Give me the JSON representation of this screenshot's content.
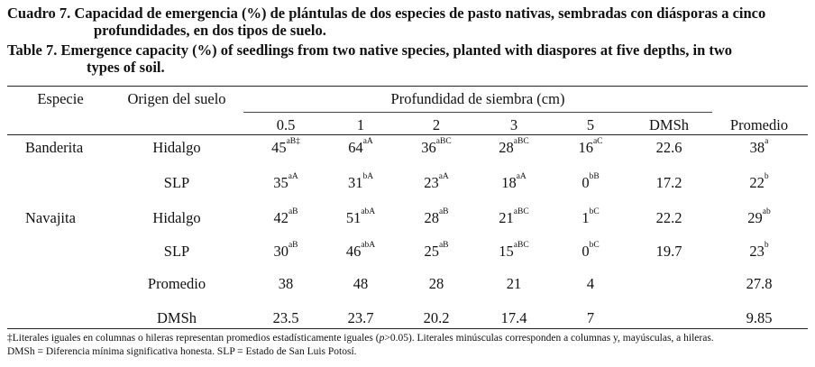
{
  "caption": {
    "es_line1": "Cuadro 7. Capacidad de emergencia (%) de plántulas de dos especies de pasto nativas, sembradas con diásporas a cinco",
    "es_line2": "profundidades, en dos tipos de suelo.",
    "en_line1": "Table 7. Emergence capacity (%) of seedlings from two native species, planted with diaspores at five depths, in two",
    "en_line2": "types of soil."
  },
  "header": {
    "especie": "Especie",
    "origen": "Origen del suelo",
    "profundidad": "Profundidad de siembra (cm)",
    "depths": [
      "0.5",
      "1",
      "2",
      "3",
      "5"
    ],
    "dmsh": "DMSh",
    "promedio": "Promedio"
  },
  "rows": [
    {
      "species": "Banderita",
      "soil": "Hidalgo",
      "cells": [
        [
          "45",
          "aB‡"
        ],
        [
          "64",
          "aA"
        ],
        [
          "36",
          "aBC"
        ],
        [
          "28",
          "aBC"
        ],
        [
          "16",
          "aC"
        ]
      ],
      "dmsh": "22.6",
      "prom": [
        "38",
        "a"
      ]
    },
    {
      "species": "",
      "soil": "SLP",
      "cells": [
        [
          "35",
          "aA"
        ],
        [
          "31",
          "bA"
        ],
        [
          "23",
          "aA"
        ],
        [
          "18",
          "aA"
        ],
        [
          "0",
          "bB"
        ]
      ],
      "dmsh": "17.2",
      "prom": [
        "22",
        "b"
      ]
    },
    {
      "species": "Navajita",
      "soil": "Hidalgo",
      "cells": [
        [
          "42",
          "aB"
        ],
        [
          "51",
          "abA"
        ],
        [
          "28",
          "aB"
        ],
        [
          "21",
          "aBC"
        ],
        [
          "1",
          "bC"
        ]
      ],
      "dmsh": "22.2",
      "prom": [
        "29",
        "ab"
      ]
    },
    {
      "species": "",
      "soil": "SLP",
      "cells": [
        [
          "30",
          "aB"
        ],
        [
          "46",
          "abA"
        ],
        [
          "25",
          "aB"
        ],
        [
          "15",
          "aBC"
        ],
        [
          "0",
          "bC"
        ]
      ],
      "dmsh": "19.7",
      "prom": [
        "23",
        "b"
      ]
    },
    {
      "species": "",
      "soil": "Promedio",
      "cells": [
        [
          "38",
          ""
        ],
        [
          "48",
          ""
        ],
        [
          "28",
          ""
        ],
        [
          "21",
          ""
        ],
        [
          "4",
          ""
        ]
      ],
      "dmsh": "",
      "prom": [
        "27.8",
        ""
      ]
    },
    {
      "species": "",
      "soil": "DMSh",
      "cells": [
        [
          "23.5",
          ""
        ],
        [
          "23.7",
          ""
        ],
        [
          "20.2",
          ""
        ],
        [
          "17.4",
          ""
        ],
        [
          "7",
          ""
        ]
      ],
      "dmsh": "",
      "prom": [
        "9.85",
        ""
      ]
    }
  ],
  "footnote": {
    "line1_a": "‡Literales iguales en columnas o hileras representan promedios estadísticamente iguales (",
    "line1_p": "p",
    "line1_b": ">0.05). Literales minúsculas corresponden a columnas y, mayúsculas, a hileras.",
    "line2": "DMSh = Diferencia mínima significativa honesta. SLP = Estado de San Luis Potosí."
  }
}
